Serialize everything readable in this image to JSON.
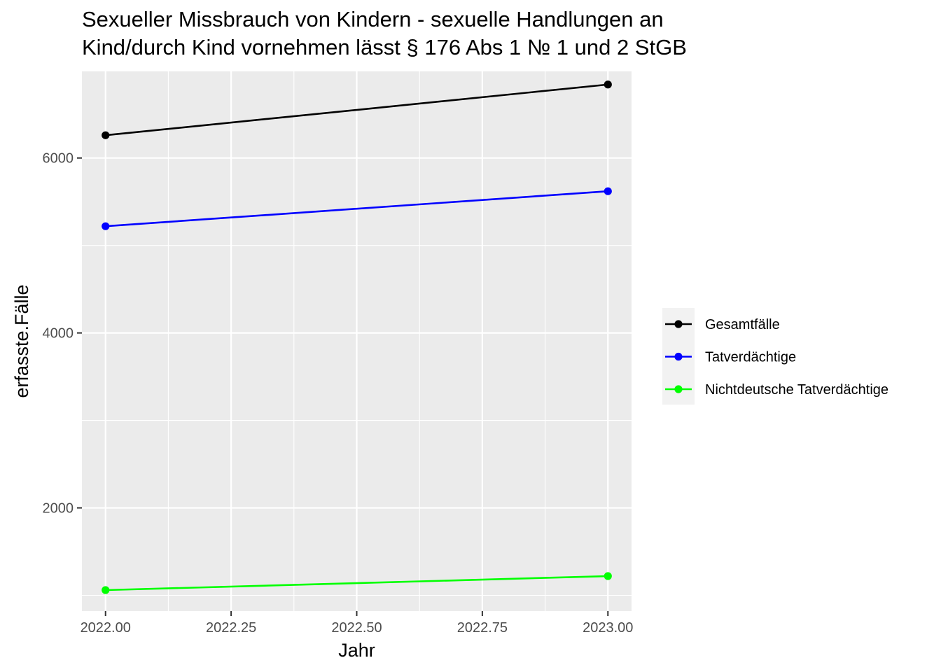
{
  "chart_data": {
    "type": "line",
    "title_lines": [
      "Sexueller Missbrauch von Kindern - sexuelle Handlungen an",
      "Kind/durch Kind vornehmen lässt § 176 Abs 1 № 1 und 2 StGB"
    ],
    "xlabel": "Jahr",
    "ylabel": "erfasste.Fälle",
    "x": [
      2022,
      2023
    ],
    "xlim": [
      2021.953,
      2023.047
    ],
    "ylim": [
      820,
      6990
    ],
    "x_ticks": [
      2022.0,
      2022.25,
      2022.5,
      2022.75,
      2023.0
    ],
    "x_tick_labels": [
      "2022.00",
      "2022.25",
      "2022.50",
      "2022.75",
      "2023.00"
    ],
    "y_ticks": [
      2000,
      4000,
      6000
    ],
    "y_tick_labels": [
      "2000",
      "4000",
      "6000"
    ],
    "grid": true,
    "legend_position": "right",
    "series": [
      {
        "name": "Gesamtfälle",
        "color": "#000000",
        "values": [
          6260,
          6840
        ]
      },
      {
        "name": "Tatverdächtige",
        "color": "#0000ff",
        "values": [
          5220,
          5620
        ]
      },
      {
        "name": "Nichtdeutsche Tatverdächtige",
        "color": "#00ff00",
        "values": [
          1060,
          1220
        ]
      }
    ]
  }
}
